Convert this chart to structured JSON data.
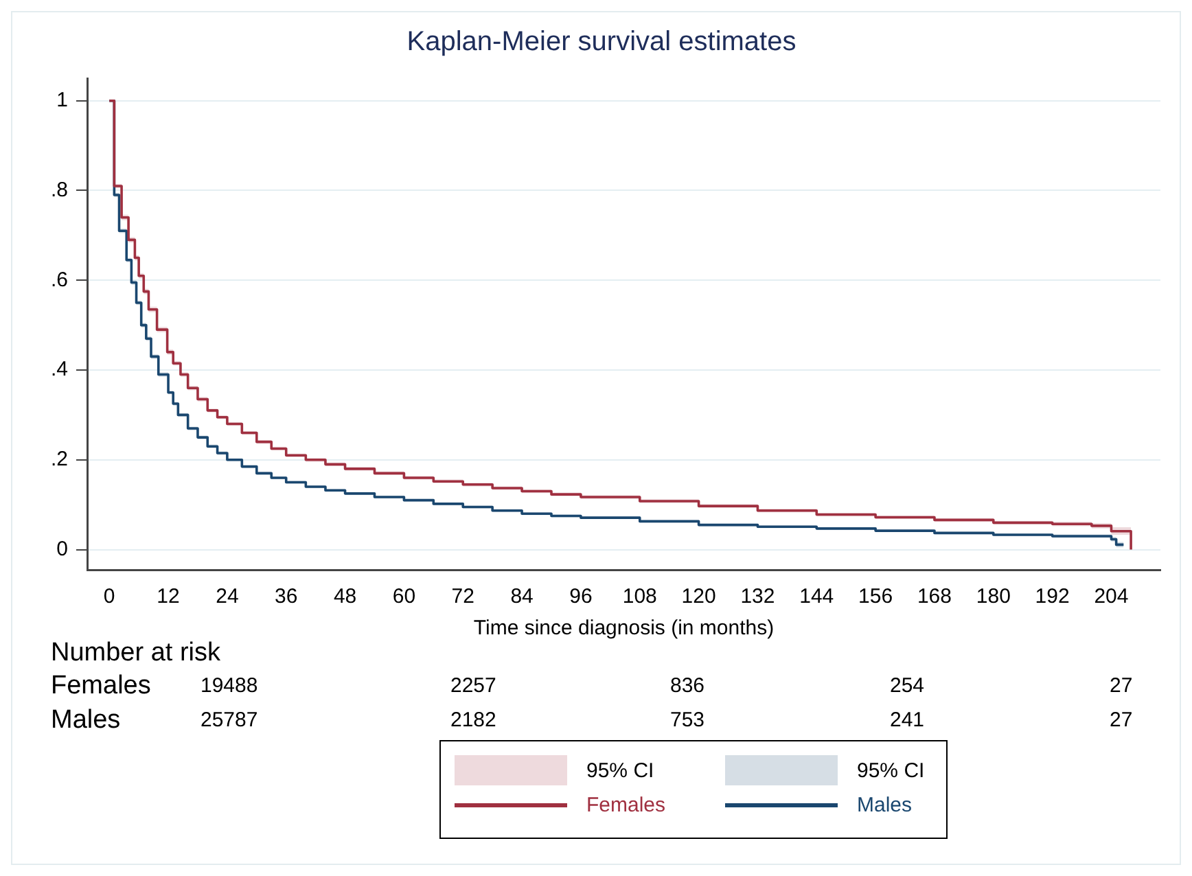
{
  "chart_data": {
    "type": "step",
    "title": "Kaplan-Meier survival estimates",
    "xlabel": "Time since diagnosis (in months)",
    "xlim": [
      -4.5,
      214
    ],
    "xticks": [
      0,
      12,
      24,
      36,
      48,
      60,
      72,
      84,
      96,
      108,
      120,
      132,
      144,
      156,
      168,
      180,
      192,
      204
    ],
    "ylim": [
      -0.045,
      1.05
    ],
    "yticks": [
      0,
      {
        "value": 0.2,
        "label": ".2"
      },
      {
        "value": 0.4,
        "label": ".4"
      },
      {
        "value": 0.6,
        "label": ".6"
      },
      {
        "value": 0.8,
        "label": ".8"
      },
      1
    ],
    "grid": "y",
    "legend": "bottom",
    "line_style": "solid",
    "marker": "none",
    "series": [
      {
        "name": "Females",
        "color": "#a03040",
        "x": [
          0,
          1,
          2.5,
          3.9,
          5.2,
          6,
          7,
          8,
          9.7,
          11.8,
          13,
          14.5,
          16,
          18,
          20,
          22,
          24,
          27,
          30,
          33,
          36,
          40,
          44,
          48,
          54,
          60,
          66,
          72,
          78,
          84,
          90,
          96,
          108,
          120,
          132,
          144,
          156,
          168,
          180,
          192,
          200,
          204,
          208
        ],
        "values": [
          1,
          0.81,
          0.74,
          0.69,
          0.65,
          0.61,
          0.575,
          0.535,
          0.49,
          0.44,
          0.415,
          0.39,
          0.36,
          0.335,
          0.31,
          0.295,
          0.28,
          0.26,
          0.24,
          0.225,
          0.21,
          0.2,
          0.19,
          0.18,
          0.17,
          0.16,
          0.152,
          0.145,
          0.137,
          0.13,
          0.123,
          0.117,
          0.108,
          0.097,
          0.087,
          0.078,
          0.072,
          0.066,
          0.06,
          0.057,
          0.053,
          0.041,
          0
        ],
        "lower": [
          1,
          0.805,
          0.734,
          0.684,
          0.644,
          0.604,
          0.569,
          0.529,
          0.484,
          0.434,
          0.41,
          0.385,
          0.355,
          0.33,
          0.306,
          0.291,
          0.276,
          0.256,
          0.236,
          0.221,
          0.206,
          0.196,
          0.186,
          0.176,
          0.166,
          0.156,
          0.148,
          0.141,
          0.133,
          0.126,
          0.119,
          0.113,
          0.104,
          0.093,
          0.083,
          0.074,
          0.068,
          0.062,
          0.056,
          0.052,
          0.047,
          0.033,
          0
        ],
        "upper": [
          1,
          0.815,
          0.746,
          0.696,
          0.656,
          0.616,
          0.581,
          0.541,
          0.496,
          0.446,
          0.42,
          0.395,
          0.365,
          0.34,
          0.314,
          0.299,
          0.284,
          0.264,
          0.244,
          0.229,
          0.214,
          0.204,
          0.194,
          0.184,
          0.174,
          0.164,
          0.156,
          0.149,
          0.141,
          0.134,
          0.127,
          0.121,
          0.112,
          0.101,
          0.091,
          0.082,
          0.076,
          0.07,
          0.064,
          0.062,
          0.059,
          0.05,
          0
        ]
      },
      {
        "name": "Males",
        "color": "#1a476f",
        "x": [
          0,
          1,
          2,
          3.5,
          4.5,
          5.5,
          6.5,
          7.5,
          8.5,
          10,
          12,
          13,
          14,
          16,
          18,
          20,
          22,
          24,
          27,
          30,
          33,
          36,
          40,
          44,
          48,
          54,
          60,
          66,
          72,
          78,
          84,
          90,
          96,
          108,
          120,
          132,
          144,
          156,
          168,
          180,
          192,
          204,
          205,
          206.5
        ],
        "values": [
          1,
          0.79,
          0.71,
          0.645,
          0.595,
          0.55,
          0.5,
          0.47,
          0.43,
          0.39,
          0.35,
          0.325,
          0.3,
          0.27,
          0.25,
          0.23,
          0.215,
          0.2,
          0.185,
          0.17,
          0.16,
          0.15,
          0.14,
          0.132,
          0.125,
          0.117,
          0.11,
          0.102,
          0.095,
          0.087,
          0.08,
          0.075,
          0.071,
          0.063,
          0.055,
          0.051,
          0.047,
          0.042,
          0.037,
          0.033,
          0.03,
          0.023,
          0.011,
          0.011
        ],
        "lower": [
          1,
          0.785,
          0.705,
          0.64,
          0.59,
          0.545,
          0.495,
          0.465,
          0.425,
          0.385,
          0.346,
          0.321,
          0.296,
          0.266,
          0.246,
          0.226,
          0.211,
          0.197,
          0.182,
          0.167,
          0.157,
          0.147,
          0.137,
          0.129,
          0.122,
          0.114,
          0.107,
          0.099,
          0.092,
          0.084,
          0.077,
          0.072,
          0.068,
          0.06,
          0.052,
          0.048,
          0.044,
          0.039,
          0.034,
          0.03,
          0.026,
          0.018,
          0.005,
          0.005
        ],
        "upper": [
          1,
          0.795,
          0.715,
          0.65,
          0.6,
          0.555,
          0.505,
          0.475,
          0.435,
          0.395,
          0.354,
          0.329,
          0.304,
          0.274,
          0.254,
          0.234,
          0.219,
          0.203,
          0.188,
          0.173,
          0.163,
          0.153,
          0.143,
          0.135,
          0.128,
          0.12,
          0.113,
          0.105,
          0.098,
          0.09,
          0.083,
          0.078,
          0.074,
          0.066,
          0.058,
          0.054,
          0.05,
          0.045,
          0.04,
          0.036,
          0.034,
          0.028,
          0.017,
          0.017
        ]
      }
    ],
    "annotations": [
      "Number at risk",
      "Females",
      "19488",
      "2257",
      "836",
      "254",
      "27",
      "Males",
      "25787",
      "2182",
      "753",
      "241",
      "27",
      "95% CI",
      "95% CI"
    ]
  }
}
